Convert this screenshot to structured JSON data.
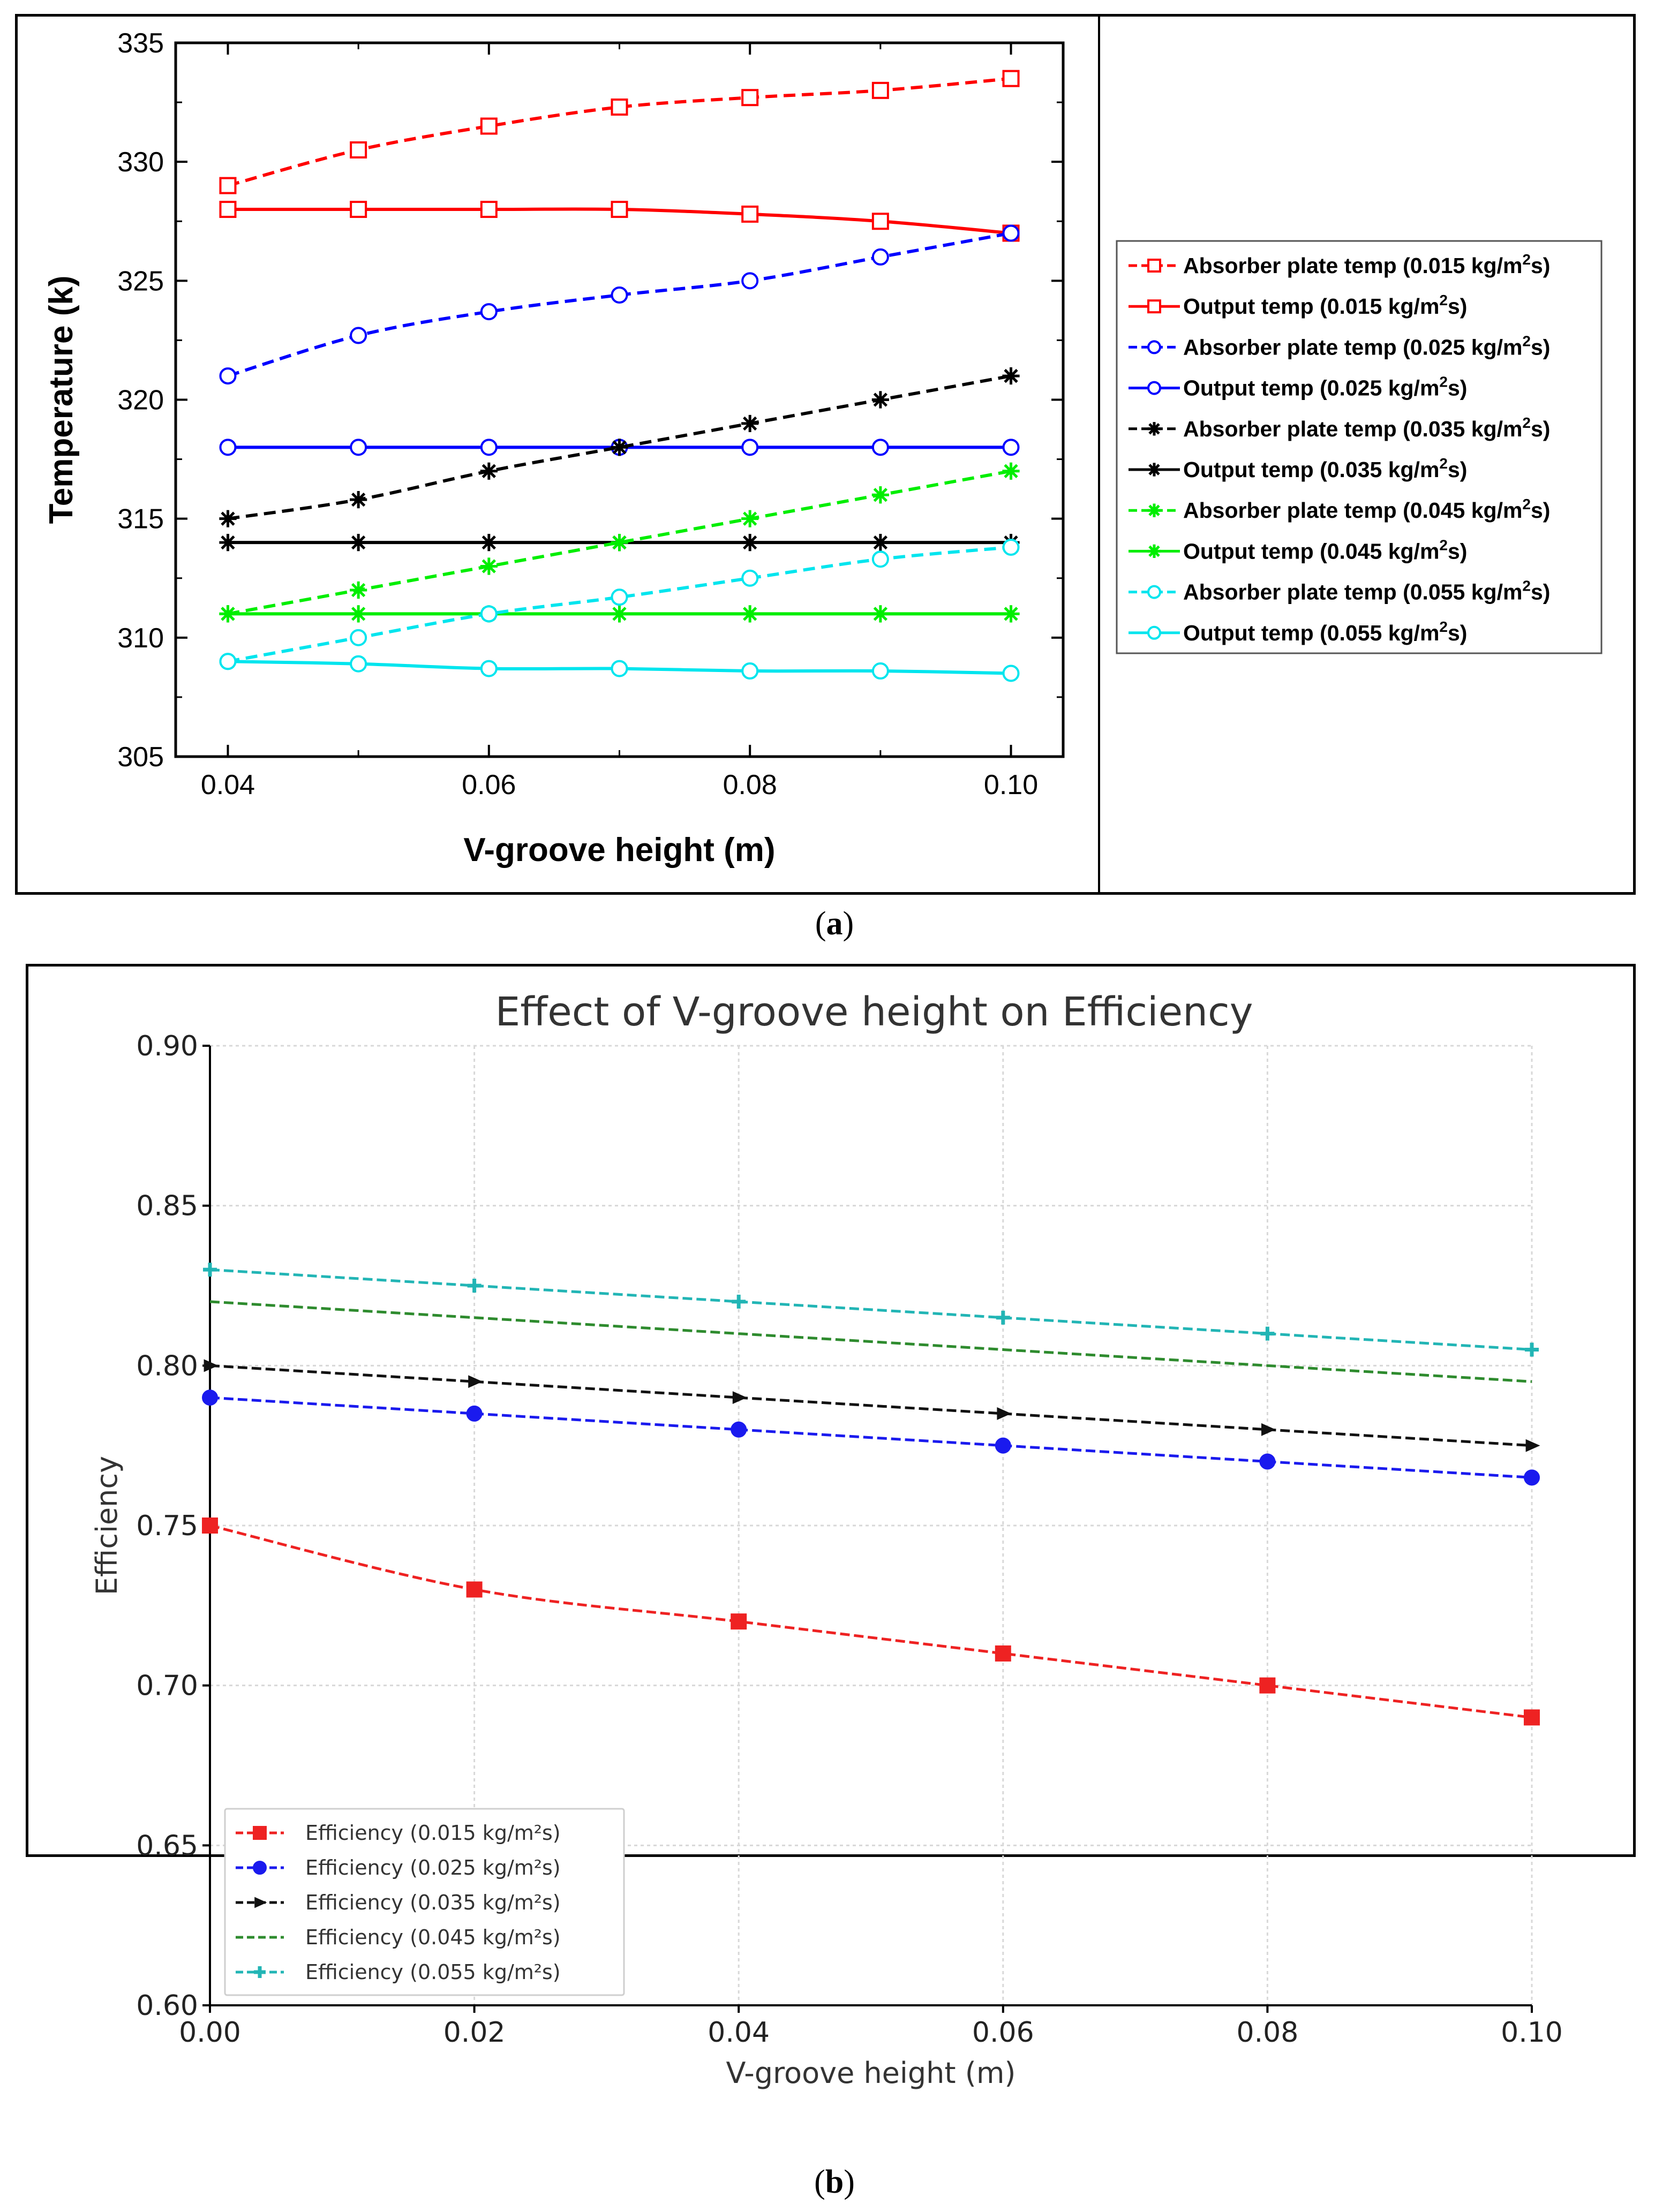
{
  "captions": {
    "a": "a",
    "b": "b"
  },
  "chart_data": [
    {
      "id": "a",
      "type": "line",
      "title": "",
      "xlabel": "V-groove height (m)",
      "ylabel": "Temperature (k)",
      "xlim": [
        0.036,
        0.104
      ],
      "ylim": [
        305,
        335
      ],
      "xticks": [
        0.04,
        0.06,
        0.08,
        0.1
      ],
      "xtick_labels": [
        "0.04",
        "0.06",
        "0.08",
        "0.10"
      ],
      "yticks": [
        305,
        310,
        315,
        320,
        325,
        330,
        335
      ],
      "ytick_labels": [
        "305",
        "310",
        "315",
        "320",
        "325",
        "330",
        "335"
      ],
      "legend_position": "right",
      "x": [
        0.04,
        0.05,
        0.06,
        0.07,
        0.08,
        0.09,
        0.1
      ],
      "series": [
        {
          "name": "Absorber plate temp (0.015 kg/m",
          "name_sup": "2",
          "name_tail": "s)",
          "color": "#ff0000",
          "dash": true,
          "marker": "square",
          "values": [
            329,
            330.5,
            331.5,
            332.3,
            332.7,
            333,
            333.5
          ]
        },
        {
          "name": "Output temp (0.015 kg/m",
          "name_sup": "2",
          "name_tail": "s)",
          "color": "#ff0000",
          "dash": false,
          "marker": "square",
          "values": [
            328,
            328,
            328,
            328,
            327.8,
            327.5,
            327
          ]
        },
        {
          "name": "Absorber plate temp (0.025 kg/m",
          "name_sup": "2",
          "name_tail": "s)",
          "color": "#0000ff",
          "dash": true,
          "marker": "circle",
          "values": [
            321,
            322.7,
            323.7,
            324.4,
            325,
            326,
            327
          ]
        },
        {
          "name": "Output temp (0.025 kg/m",
          "name_sup": "2",
          "name_tail": "s)",
          "color": "#0000ff",
          "dash": false,
          "marker": "circle",
          "values": [
            318,
            318,
            318,
            318,
            318,
            318,
            318
          ]
        },
        {
          "name": "Absorber plate temp (0.035 kg/m",
          "name_sup": "2",
          "name_tail": "s)",
          "color": "#000000",
          "dash": true,
          "marker": "asterisk",
          "values": [
            315,
            315.8,
            317,
            318,
            319,
            320,
            321
          ]
        },
        {
          "name": "Output temp (0.035 kg/m",
          "name_sup": "2",
          "name_tail": "s)",
          "color": "#000000",
          "dash": false,
          "marker": "asterisk",
          "values": [
            314,
            314,
            314,
            314,
            314,
            314,
            314
          ]
        },
        {
          "name": "Absorber plate temp (0.045 kg/m",
          "name_sup": "2",
          "name_tail": "s)",
          "color": "#00ee00",
          "dash": true,
          "marker": "asterisk",
          "values": [
            311,
            312,
            313,
            314,
            315,
            316,
            317
          ]
        },
        {
          "name": "Output temp (0.045 kg/m",
          "name_sup": "2",
          "name_tail": "s)",
          "color": "#00ee00",
          "dash": false,
          "marker": "asterisk",
          "values": [
            311,
            311,
            311,
            311,
            311,
            311,
            311
          ]
        },
        {
          "name": "Absorber plate temp (0.055 kg/m",
          "name_sup": "2",
          "name_tail": "s)",
          "color": "#00e5ee",
          "dash": true,
          "marker": "circle",
          "values": [
            309,
            310,
            311,
            311.7,
            312.5,
            313.3,
            313.8
          ]
        },
        {
          "name": "Output temp (0.055 kg/m",
          "name_sup": "2",
          "name_tail": "s)",
          "color": "#00e5ee",
          "dash": false,
          "marker": "circle",
          "values": [
            309,
            308.9,
            308.7,
            308.7,
            308.6,
            308.6,
            308.5
          ]
        }
      ]
    },
    {
      "id": "b",
      "type": "line",
      "title": "Effect of V-groove height on Efficiency",
      "xlabel": "V-groove height (m)",
      "ylabel": "Efficiency",
      "xlim": [
        0.0,
        0.1
      ],
      "ylim": [
        0.6,
        0.9
      ],
      "grid": true,
      "xticks": [
        0.0,
        0.02,
        0.04,
        0.06,
        0.08,
        0.1
      ],
      "xtick_labels": [
        "0.00",
        "0.02",
        "0.04",
        "0.06",
        "0.08",
        "0.10"
      ],
      "yticks": [
        0.6,
        0.65,
        0.7,
        0.75,
        0.8,
        0.85,
        0.9
      ],
      "ytick_labels": [
        "0.60",
        "0.65",
        "0.70",
        "0.75",
        "0.80",
        "0.85",
        "0.90"
      ],
      "legend_position": "bottom-left",
      "x": [
        0.0,
        0.02,
        0.04,
        0.06,
        0.08,
        0.1
      ],
      "series": [
        {
          "name": "Efficiency (0.015 kg/m²s)",
          "color": "#ee2222",
          "marker": "square",
          "values": [
            0.75,
            0.73,
            0.72,
            0.71,
            0.7,
            0.69
          ]
        },
        {
          "name": "Efficiency (0.025 kg/m²s)",
          "color": "#1a1aee",
          "marker": "circle",
          "values": [
            0.79,
            0.785,
            0.78,
            0.775,
            0.77,
            0.765
          ]
        },
        {
          "name": "Efficiency (0.035 kg/m²s)",
          "color": "#111111",
          "marker": "triangle",
          "values": [
            0.8,
            0.795,
            0.79,
            0.785,
            0.78,
            0.775
          ]
        },
        {
          "name": "Efficiency (0.045 kg/m²s)",
          "color": "#2e8b2e",
          "marker": "none",
          "values": [
            0.82,
            0.815,
            0.81,
            0.805,
            0.8,
            0.795
          ]
        },
        {
          "name": "Efficiency (0.055 kg/m²s)",
          "color": "#22b5b5",
          "marker": "plus",
          "values": [
            0.83,
            0.825,
            0.82,
            0.815,
            0.81,
            0.805
          ]
        }
      ]
    }
  ]
}
